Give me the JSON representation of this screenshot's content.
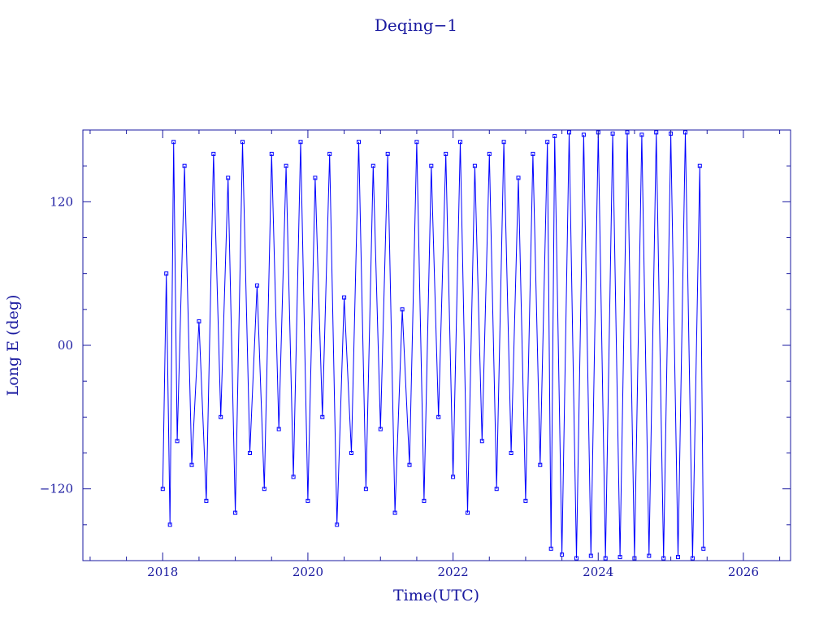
{
  "chart_data": {
    "type": "scatter",
    "title": "Deqing−1",
    "xlabel": "Time(UTC)",
    "ylabel": "Long E (deg)",
    "x_unit": "year",
    "xlim": [
      2016.9,
      2026.65
    ],
    "ylim": [
      -180,
      180
    ],
    "x_ticks": [
      2018,
      2020,
      2022,
      2024,
      2026
    ],
    "x_tick_labels": [
      "2018",
      "2020",
      "2022",
      "2024",
      "2026"
    ],
    "y_ticks": [
      -120,
      0,
      120
    ],
    "y_tick_labels": [
      "−120",
      "00",
      "120"
    ],
    "grid": false,
    "legend": "none",
    "connect_points": true,
    "series": [
      {
        "color": "#0000ff",
        "x": [
          2018.0,
          2018.05,
          2018.1,
          2018.15,
          2018.2,
          2018.3,
          2018.4,
          2018.5,
          2018.6,
          2018.7,
          2018.8,
          2018.9,
          2019.0,
          2019.1,
          2019.2,
          2019.3,
          2019.4,
          2019.5,
          2019.6,
          2019.7,
          2019.8,
          2019.9,
          2020.0,
          2020.1,
          2020.2,
          2020.3,
          2020.4,
          2020.5,
          2020.6,
          2020.7,
          2020.8,
          2020.9,
          2021.0,
          2021.1,
          2021.2,
          2021.3,
          2021.4,
          2021.5,
          2021.6,
          2021.7,
          2021.8,
          2021.9,
          2022.0,
          2022.1,
          2022.2,
          2022.3,
          2022.4,
          2022.5,
          2022.6,
          2022.7,
          2022.8,
          2022.9,
          2023.0,
          2023.1,
          2023.2,
          2023.3,
          2023.35,
          2023.4,
          2023.5,
          2023.6,
          2023.7,
          2023.8,
          2023.9,
          2024.0,
          2024.1,
          2024.2,
          2024.3,
          2024.4,
          2024.5,
          2024.6,
          2024.7,
          2024.8,
          2024.9,
          2025.0,
          2025.1,
          2025.2,
          2025.3,
          2025.4,
          2025.45
        ],
        "y": [
          -120,
          60,
          -150,
          170,
          -80,
          150,
          -100,
          20,
          -130,
          160,
          -60,
          140,
          -140,
          170,
          -90,
          50,
          -120,
          160,
          -70,
          150,
          -110,
          170,
          -130,
          140,
          -60,
          160,
          -150,
          40,
          -90,
          170,
          -120,
          150,
          -70,
          160,
          -140,
          30,
          -100,
          170,
          -130,
          150,
          -60,
          160,
          -110,
          170,
          -140,
          150,
          -80,
          160,
          -120,
          170,
          -90,
          140,
          -130,
          160,
          -100,
          170,
          -170,
          175,
          -175,
          178,
          -178,
          176,
          -176,
          178,
          -178,
          177,
          -177,
          178,
          -178,
          176,
          -176,
          178,
          -178,
          177,
          -177,
          178,
          -178,
          150,
          -170
        ]
      }
    ]
  }
}
